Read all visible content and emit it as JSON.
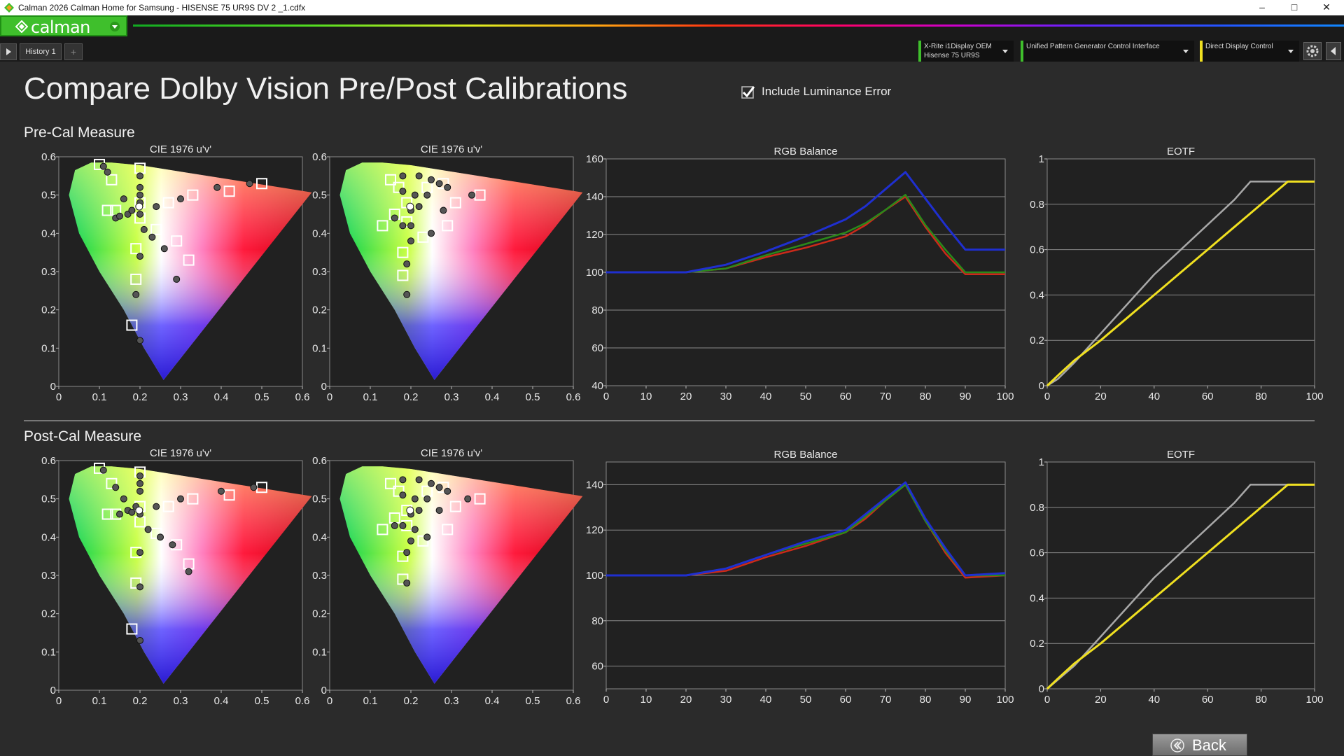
{
  "window": {
    "title": "Calman 2026 Calman Home for Samsung  - HISENSE 75 UR9S DV 2 _1.cdfx",
    "minimize": "–",
    "maximize": "□",
    "close": "✕"
  },
  "header": {
    "logo_text": "calman",
    "tabs": [
      {
        "label": "History 1"
      }
    ],
    "add_tab": "+",
    "devices": [
      {
        "line1": "X-Rite i1Display OEM",
        "line2": "Hisense 75 UR9S"
      },
      {
        "line1": "Unified Pattern Generator Control Interface",
        "line2": ""
      },
      {
        "line1": "Direct Display Control",
        "line2": ""
      }
    ],
    "accent_green": "#3fbf2c",
    "accent_yellow": "#f0e020"
  },
  "page": {
    "title": "Compare Dolby Vision Pre/Post Calibrations",
    "include_luminance_error": {
      "label": "Include Luminance Error",
      "checked": true
    },
    "back_label": "Back"
  },
  "sections": [
    {
      "label": "Pre-Cal Measure"
    },
    {
      "label": "Post-Cal Measure"
    }
  ],
  "chart_data": [
    {
      "section": "pre",
      "type": "scatter",
      "title": "CIE 1976 u'v'",
      "xlim": [
        0,
        0.6
      ],
      "ylim": [
        0,
        0.6
      ],
      "xticks": [
        "0",
        "0.1",
        "0.2",
        "0.3",
        "0.4",
        "0.5",
        "0.6"
      ],
      "yticks": [
        "0",
        "0.1",
        "0.2",
        "0.3",
        "0.4",
        "0.5",
        "0.6"
      ],
      "targets": [
        [
          0.1,
          0.58
        ],
        [
          0.2,
          0.57
        ],
        [
          0.13,
          0.54
        ],
        [
          0.5,
          0.53
        ],
        [
          0.42,
          0.51
        ],
        [
          0.33,
          0.5
        ],
        [
          0.27,
          0.48
        ],
        [
          0.2,
          0.48
        ],
        [
          0.14,
          0.46
        ],
        [
          0.12,
          0.46
        ],
        [
          0.2,
          0.44
        ],
        [
          0.24,
          0.41
        ],
        [
          0.29,
          0.38
        ],
        [
          0.19,
          0.36
        ],
        [
          0.32,
          0.33
        ],
        [
          0.19,
          0.28
        ],
        [
          0.18,
          0.16
        ]
      ],
      "measured": [
        [
          0.11,
          0.575
        ],
        [
          0.12,
          0.56
        ],
        [
          0.2,
          0.55
        ],
        [
          0.2,
          0.52
        ],
        [
          0.2,
          0.5
        ],
        [
          0.16,
          0.49
        ],
        [
          0.2,
          0.48
        ],
        [
          0.14,
          0.44
        ],
        [
          0.15,
          0.445
        ],
        [
          0.17,
          0.45
        ],
        [
          0.18,
          0.46
        ],
        [
          0.2,
          0.45
        ],
        [
          0.24,
          0.47
        ],
        [
          0.3,
          0.49
        ],
        [
          0.39,
          0.52
        ],
        [
          0.47,
          0.53
        ],
        [
          0.21,
          0.41
        ],
        [
          0.23,
          0.39
        ],
        [
          0.26,
          0.36
        ],
        [
          0.2,
          0.34
        ],
        [
          0.29,
          0.28
        ],
        [
          0.19,
          0.24
        ],
        [
          0.2,
          0.12
        ]
      ],
      "white": [
        0.198,
        0.47
      ]
    },
    {
      "section": "pre",
      "type": "scatter",
      "title": "CIE 1976 u'v'",
      "xlim": [
        0,
        0.6
      ],
      "ylim": [
        0,
        0.6
      ],
      "xticks": [
        "0",
        "0.1",
        "0.2",
        "0.3",
        "0.4",
        "0.5",
        "0.6"
      ],
      "yticks": [
        "0",
        "0.1",
        "0.2",
        "0.3",
        "0.4",
        "0.5",
        "0.6"
      ],
      "targets": [
        [
          0.15,
          0.54
        ],
        [
          0.17,
          0.52
        ],
        [
          0.28,
          0.53
        ],
        [
          0.24,
          0.52
        ],
        [
          0.37,
          0.5
        ],
        [
          0.31,
          0.48
        ],
        [
          0.19,
          0.48
        ],
        [
          0.16,
          0.45
        ],
        [
          0.13,
          0.42
        ],
        [
          0.19,
          0.43
        ],
        [
          0.23,
          0.39
        ],
        [
          0.29,
          0.42
        ],
        [
          0.18,
          0.35
        ],
        [
          0.18,
          0.29
        ]
      ],
      "measured": [
        [
          0.18,
          0.55
        ],
        [
          0.22,
          0.55
        ],
        [
          0.25,
          0.54
        ],
        [
          0.27,
          0.53
        ],
        [
          0.29,
          0.52
        ],
        [
          0.18,
          0.51
        ],
        [
          0.21,
          0.5
        ],
        [
          0.24,
          0.5
        ],
        [
          0.22,
          0.47
        ],
        [
          0.2,
          0.46
        ],
        [
          0.16,
          0.44
        ],
        [
          0.18,
          0.42
        ],
        [
          0.2,
          0.42
        ],
        [
          0.28,
          0.46
        ],
        [
          0.35,
          0.5
        ],
        [
          0.2,
          0.38
        ],
        [
          0.25,
          0.4
        ],
        [
          0.19,
          0.32
        ],
        [
          0.19,
          0.24
        ]
      ],
      "white": [
        0.198,
        0.47
      ]
    },
    {
      "section": "pre",
      "type": "line",
      "title": "RGB Balance",
      "xlim": [
        0,
        100
      ],
      "ylim": [
        40,
        160
      ],
      "xticks": [
        "0",
        "10",
        "20",
        "30",
        "40",
        "50",
        "60",
        "70",
        "80",
        "90",
        "100"
      ],
      "yticks": [
        "40",
        "60",
        "80",
        "100",
        "120",
        "140",
        "160"
      ],
      "x": [
        0,
        10,
        20,
        30,
        40,
        50,
        60,
        65,
        70,
        75,
        80,
        85,
        90,
        100
      ],
      "series": [
        {
          "color": "#cc2a1a",
          "values": [
            100,
            100,
            100,
            102,
            108,
            113,
            119,
            125,
            133,
            140,
            124,
            110,
            99,
            99
          ]
        },
        {
          "color": "#2a8a1a",
          "values": [
            100,
            100,
            100,
            102,
            109,
            115,
            121,
            126,
            133,
            141,
            125,
            112,
            100,
            100
          ]
        },
        {
          "color": "#1f2fd0",
          "values": [
            100,
            100,
            100,
            104,
            111,
            119,
            128,
            135,
            144,
            153,
            139,
            125,
            112,
            112
          ]
        }
      ]
    },
    {
      "section": "pre",
      "type": "line",
      "title": "EOTF",
      "xlim": [
        0,
        100
      ],
      "ylim": [
        0,
        1
      ],
      "xticks": [
        "0",
        "20",
        "40",
        "60",
        "80",
        "100"
      ],
      "yticks": [
        "0",
        "0.2",
        "0.4",
        "0.6",
        "0.8",
        "1"
      ],
      "x": [
        0,
        4,
        10,
        20,
        30,
        40,
        50,
        60,
        70,
        76,
        90,
        100
      ],
      "series": [
        {
          "color": "#a8a8a8",
          "values": [
            0,
            0.03,
            0.1,
            0.23,
            0.36,
            0.49,
            0.6,
            0.71,
            0.82,
            0.9,
            0.9,
            0.9
          ]
        },
        {
          "color": "#f0e020",
          "values": [
            0,
            0.045,
            0.11,
            0.2,
            0.3,
            0.4,
            0.5,
            0.6,
            0.7,
            0.76,
            0.9,
            0.9
          ]
        }
      ]
    },
    {
      "section": "post",
      "type": "scatter",
      "title": "CIE 1976 u'v'",
      "xlim": [
        0,
        0.6
      ],
      "ylim": [
        0,
        0.6
      ],
      "xticks": [
        "0",
        "0.1",
        "0.2",
        "0.3",
        "0.4",
        "0.5",
        "0.6"
      ],
      "yticks": [
        "0",
        "0.1",
        "0.2",
        "0.3",
        "0.4",
        "0.5",
        "0.6"
      ],
      "targets": [
        [
          0.1,
          0.58
        ],
        [
          0.2,
          0.57
        ],
        [
          0.13,
          0.54
        ],
        [
          0.5,
          0.53
        ],
        [
          0.42,
          0.51
        ],
        [
          0.33,
          0.5
        ],
        [
          0.27,
          0.48
        ],
        [
          0.2,
          0.48
        ],
        [
          0.14,
          0.46
        ],
        [
          0.12,
          0.46
        ],
        [
          0.2,
          0.44
        ],
        [
          0.24,
          0.41
        ],
        [
          0.29,
          0.38
        ],
        [
          0.19,
          0.36
        ],
        [
          0.32,
          0.33
        ],
        [
          0.19,
          0.28
        ],
        [
          0.18,
          0.16
        ]
      ],
      "measured": [
        [
          0.11,
          0.575
        ],
        [
          0.2,
          0.56
        ],
        [
          0.2,
          0.54
        ],
        [
          0.2,
          0.52
        ],
        [
          0.14,
          0.53
        ],
        [
          0.16,
          0.5
        ],
        [
          0.19,
          0.48
        ],
        [
          0.15,
          0.46
        ],
        [
          0.17,
          0.47
        ],
        [
          0.18,
          0.465
        ],
        [
          0.2,
          0.46
        ],
        [
          0.24,
          0.48
        ],
        [
          0.3,
          0.5
        ],
        [
          0.4,
          0.52
        ],
        [
          0.48,
          0.53
        ],
        [
          0.22,
          0.42
        ],
        [
          0.25,
          0.4
        ],
        [
          0.28,
          0.38
        ],
        [
          0.2,
          0.36
        ],
        [
          0.32,
          0.31
        ],
        [
          0.2,
          0.27
        ],
        [
          0.2,
          0.13
        ]
      ],
      "white": [
        0.198,
        0.47
      ]
    },
    {
      "section": "post",
      "type": "scatter",
      "title": "CIE 1976 u'v'",
      "xlim": [
        0,
        0.6
      ],
      "ylim": [
        0,
        0.6
      ],
      "xticks": [
        "0",
        "0.1",
        "0.2",
        "0.3",
        "0.4",
        "0.5",
        "0.6"
      ],
      "yticks": [
        "0",
        "0.1",
        "0.2",
        "0.3",
        "0.4",
        "0.5",
        "0.6"
      ],
      "targets": [
        [
          0.15,
          0.54
        ],
        [
          0.17,
          0.52
        ],
        [
          0.28,
          0.53
        ],
        [
          0.24,
          0.52
        ],
        [
          0.37,
          0.5
        ],
        [
          0.31,
          0.48
        ],
        [
          0.19,
          0.47
        ],
        [
          0.16,
          0.45
        ],
        [
          0.13,
          0.42
        ],
        [
          0.19,
          0.43
        ],
        [
          0.23,
          0.39
        ],
        [
          0.29,
          0.42
        ],
        [
          0.18,
          0.35
        ],
        [
          0.18,
          0.29
        ]
      ],
      "measured": [
        [
          0.18,
          0.55
        ],
        [
          0.22,
          0.55
        ],
        [
          0.25,
          0.54
        ],
        [
          0.27,
          0.53
        ],
        [
          0.29,
          0.52
        ],
        [
          0.18,
          0.51
        ],
        [
          0.21,
          0.5
        ],
        [
          0.24,
          0.5
        ],
        [
          0.22,
          0.47
        ],
        [
          0.2,
          0.46
        ],
        [
          0.16,
          0.43
        ],
        [
          0.18,
          0.43
        ],
        [
          0.21,
          0.42
        ],
        [
          0.27,
          0.47
        ],
        [
          0.34,
          0.5
        ],
        [
          0.2,
          0.39
        ],
        [
          0.24,
          0.4
        ],
        [
          0.19,
          0.36
        ],
        [
          0.19,
          0.28
        ]
      ],
      "white": [
        0.198,
        0.47
      ]
    },
    {
      "section": "post",
      "type": "line",
      "title": "RGB Balance",
      "xlim": [
        0,
        100
      ],
      "ylim": [
        50,
        150
      ],
      "xticks": [
        "0",
        "10",
        "20",
        "30",
        "40",
        "50",
        "60",
        "70",
        "80",
        "90",
        "100"
      ],
      "yticks": [
        "60",
        "80",
        "100",
        "120",
        "140"
      ],
      "x": [
        0,
        10,
        20,
        30,
        40,
        50,
        60,
        65,
        70,
        75,
        80,
        85,
        90,
        100
      ],
      "series": [
        {
          "color": "#cc2a1a",
          "values": [
            100,
            100,
            100,
            102,
            108,
            113,
            119,
            125,
            133,
            140,
            124,
            110,
            99,
            100
          ]
        },
        {
          "color": "#2a8a1a",
          "values": [
            100,
            100,
            100,
            103,
            109,
            114,
            119,
            126,
            133,
            140,
            124,
            111,
            100,
            100
          ]
        },
        {
          "color": "#1f2fd0",
          "values": [
            100,
            100,
            100,
            103,
            109,
            115,
            120,
            127,
            134,
            141,
            125,
            112,
            100,
            101
          ]
        }
      ]
    },
    {
      "section": "post",
      "type": "line",
      "title": "EOTF",
      "xlim": [
        0,
        100
      ],
      "ylim": [
        0,
        1
      ],
      "xticks": [
        "0",
        "20",
        "40",
        "60",
        "80",
        "100"
      ],
      "yticks": [
        "0",
        "0.2",
        "0.4",
        "0.6",
        "0.8",
        "1"
      ],
      "x": [
        0,
        4,
        10,
        20,
        30,
        40,
        50,
        60,
        70,
        76,
        90,
        100
      ],
      "series": [
        {
          "color": "#a8a8a8",
          "values": [
            0,
            0.04,
            0.1,
            0.23,
            0.36,
            0.49,
            0.6,
            0.71,
            0.82,
            0.9,
            0.9,
            0.9
          ]
        },
        {
          "color": "#f0e020",
          "values": [
            0,
            0.045,
            0.11,
            0.2,
            0.3,
            0.4,
            0.5,
            0.6,
            0.7,
            0.76,
            0.9,
            0.9
          ]
        }
      ]
    }
  ]
}
